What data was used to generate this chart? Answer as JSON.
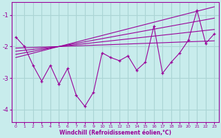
{
  "xlabel": "Windchill (Refroidissement éolien,°C)",
  "bg_color": "#c8ecec",
  "grid_color": "#aad4d4",
  "line_color": "#990099",
  "x_data": [
    0,
    1,
    2,
    3,
    4,
    5,
    6,
    7,
    8,
    9,
    10,
    11,
    12,
    13,
    14,
    15,
    16,
    17,
    18,
    19,
    20,
    21,
    22,
    23
  ],
  "y_main": [
    -1.7,
    -2.0,
    -2.6,
    -3.1,
    -2.6,
    -3.2,
    -2.7,
    -3.55,
    -3.9,
    -3.45,
    -2.2,
    -2.35,
    -2.45,
    -2.3,
    -2.75,
    -2.5,
    -1.35,
    -2.85,
    -2.5,
    -2.2,
    -1.8,
    -0.85,
    -1.9,
    -1.6
  ],
  "y_line1": [
    -2.05,
    -2.04,
    -2.03,
    -2.02,
    -2.01,
    -2.0,
    -1.99,
    -1.98,
    -1.97,
    -1.96,
    -1.95,
    -1.94,
    -1.93,
    -1.92,
    -1.91,
    -1.9,
    -1.89,
    -1.88,
    -1.87,
    -1.86,
    -1.85,
    -1.84,
    -1.83,
    -1.82
  ],
  "y_line2": [
    -2.15,
    -2.12,
    -2.09,
    -2.06,
    -2.03,
    -2.0,
    -1.97,
    -1.94,
    -1.91,
    -1.88,
    -1.85,
    -1.82,
    -1.79,
    -1.76,
    -1.73,
    -1.7,
    -1.67,
    -1.64,
    -1.61,
    -1.58,
    -1.55,
    -1.52,
    -1.49,
    -1.46
  ],
  "y_line3": [
    -2.25,
    -2.2,
    -2.15,
    -2.1,
    -2.05,
    -2.0,
    -1.95,
    -1.9,
    -1.85,
    -1.8,
    -1.75,
    -1.7,
    -1.65,
    -1.6,
    -1.55,
    -1.5,
    -1.45,
    -1.4,
    -1.35,
    -1.3,
    -1.25,
    -1.2,
    -1.15,
    -1.1
  ],
  "y_line4": [
    -2.35,
    -2.28,
    -2.21,
    -2.14,
    -2.07,
    -2.0,
    -1.93,
    -1.86,
    -1.79,
    -1.72,
    -1.65,
    -1.58,
    -1.51,
    -1.44,
    -1.37,
    -1.3,
    -1.23,
    -1.16,
    -1.09,
    -1.02,
    -0.95,
    -0.88,
    -0.81,
    -0.74
  ],
  "ylim": [
    -4.4,
    -0.6
  ],
  "xlim": [
    -0.5,
    23.5
  ],
  "yticks": [
    -4,
    -3,
    -2,
    -1
  ],
  "xticks": [
    0,
    1,
    2,
    3,
    4,
    5,
    6,
    7,
    8,
    9,
    10,
    11,
    12,
    13,
    14,
    15,
    16,
    17,
    18,
    19,
    20,
    21,
    22,
    23
  ]
}
